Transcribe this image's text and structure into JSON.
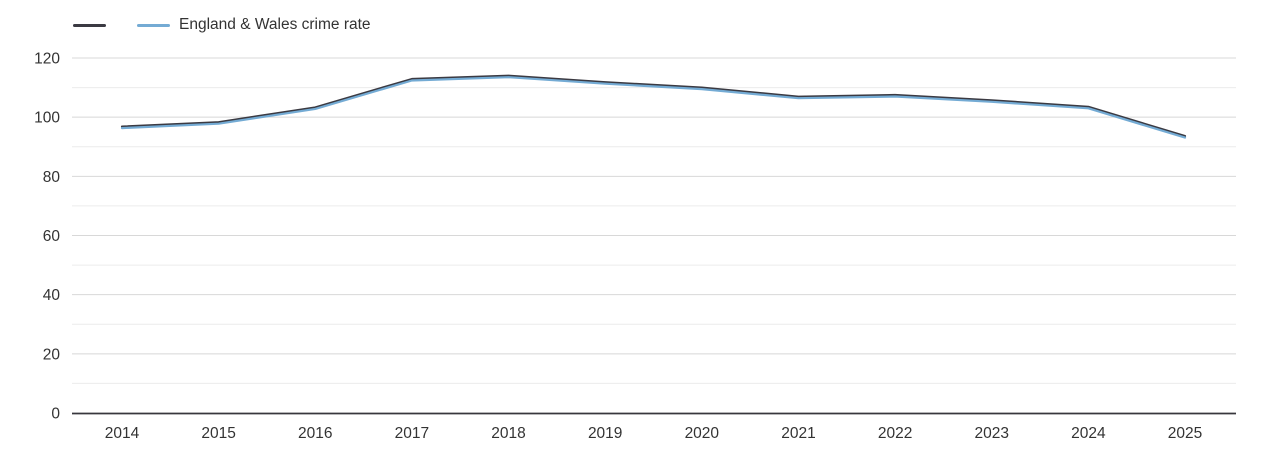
{
  "legend": {
    "items": [
      {
        "label": "",
        "color": "#3b3a42"
      },
      {
        "label": "England & Wales crime rate",
        "color": "#74abd4"
      }
    ]
  },
  "chart_data": {
    "type": "line",
    "title": "",
    "xlabel": "",
    "ylabel": "",
    "x": [
      2014,
      2015,
      2016,
      2017,
      2018,
      2019,
      2020,
      2021,
      2022,
      2023,
      2024,
      2025
    ],
    "series": [
      {
        "name": "",
        "color": "#3b3a42",
        "values": [
          96.5,
          98,
          103,
          112.6,
          113.7,
          111.5,
          109.7,
          106.6,
          107.2,
          105.4,
          103.2,
          93.3
        ]
      },
      {
        "name": "England & Wales crime rate",
        "color": "#74abd4",
        "values": [
          96.5,
          98,
          103,
          112.6,
          113.7,
          111.5,
          109.7,
          106.6,
          107.2,
          105.4,
          103.2,
          93.3
        ]
      }
    ],
    "ylim": [
      0,
      120
    ],
    "yticks_major": [
      0,
      20,
      40,
      60,
      80,
      100,
      120
    ],
    "yticks_minor": [
      10,
      30,
      50,
      70,
      90,
      110
    ],
    "grid": "horizontal",
    "legend_position": "top-left",
    "colors": {
      "grid_major": "#d8d8d8",
      "grid_minor": "#ececec",
      "axis_line": "#38373d",
      "tick_label": "#333333"
    }
  }
}
